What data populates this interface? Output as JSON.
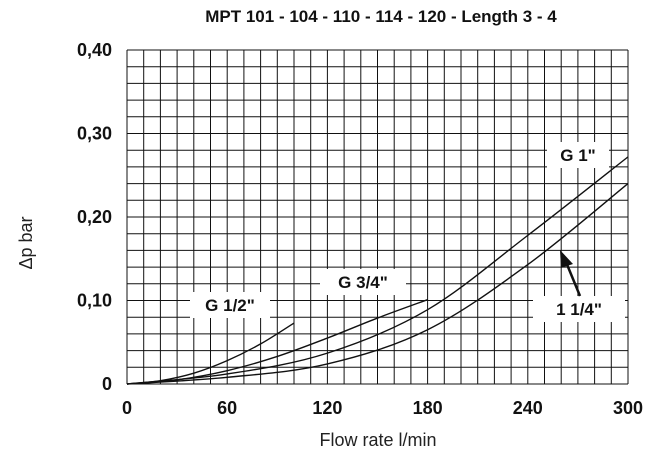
{
  "chart_data": {
    "type": "line",
    "title": "MPT 101 - 104 - 110 - 114 - 120 - Length 3 - 4",
    "xlabel": "Flow rate l/min",
    "ylabel": "Δp bar",
    "xlim": [
      0,
      300
    ],
    "ylim": [
      0,
      0.4
    ],
    "grid": true,
    "x_ticks": [
      "0",
      "60",
      "120",
      "180",
      "240",
      "300"
    ],
    "y_ticks": [
      "0",
      "0,10",
      "0,20",
      "0,30",
      "0,40"
    ],
    "series": [
      {
        "name": "G 1/2\"",
        "x": [
          0,
          20,
          40,
          60,
          80,
          100
        ],
        "y": [
          0,
          0.004,
          0.013,
          0.028,
          0.048,
          0.073
        ]
      },
      {
        "name": "G 3/4\"",
        "x": [
          0,
          30,
          60,
          90,
          120,
          150,
          180
        ],
        "y": [
          0,
          0.005,
          0.016,
          0.033,
          0.055,
          0.079,
          0.101
        ]
      },
      {
        "name": "G 1\"",
        "x": [
          0,
          60,
          120,
          180,
          240,
          300
        ],
        "y": [
          0,
          0.012,
          0.037,
          0.089,
          0.178,
          0.272
        ]
      },
      {
        "name": "1 1/4\"",
        "x": [
          0,
          60,
          120,
          180,
          240,
          300
        ],
        "y": [
          0,
          0.008,
          0.024,
          0.065,
          0.143,
          0.24
        ]
      }
    ]
  }
}
